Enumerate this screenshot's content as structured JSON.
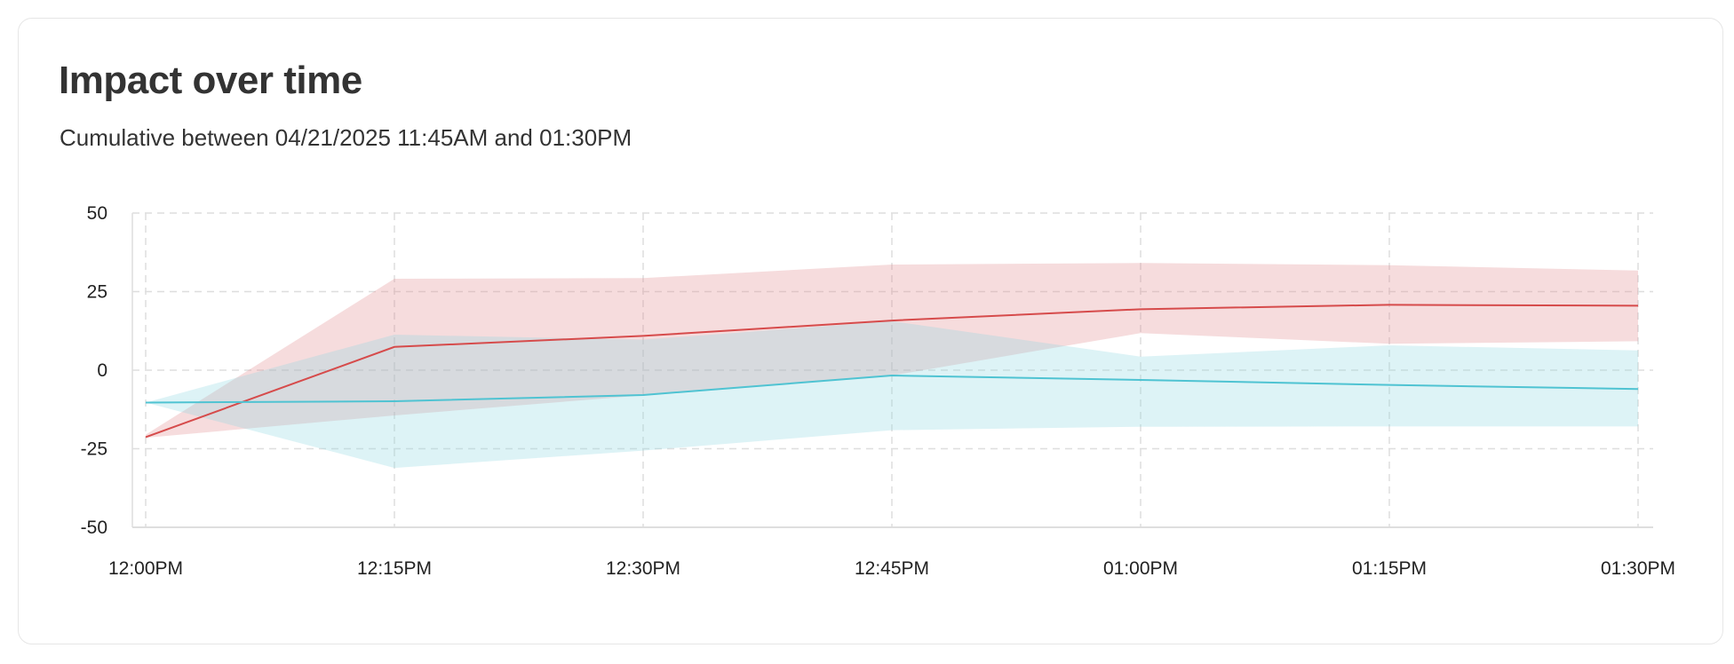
{
  "header": {
    "title": "Impact over time",
    "subtitle": "Cumulative between 04/21/2025 11:45AM and 01:30PM"
  },
  "chart_data": {
    "type": "line",
    "x": [
      "12:00PM",
      "12:15PM",
      "12:30PM",
      "12:45PM",
      "01:00PM",
      "01:15PM",
      "01:30PM"
    ],
    "ylim": [
      -50,
      50
    ],
    "yticks": [
      50,
      25,
      0,
      -25,
      -50
    ],
    "grid": true,
    "series": [
      {
        "color": "#d64b4b",
        "band_color": "#e08a90",
        "values": [
          -21.3,
          7.4,
          10.9,
          15.8,
          19.4,
          20.8,
          20.5
        ],
        "upper": [
          -20.5,
          29.1,
          29.3,
          33.6,
          34.1,
          33.4,
          31.7
        ],
        "lower": [
          -21.5,
          -14.4,
          -8.0,
          -1.7,
          11.8,
          8.4,
          9.2
        ]
      },
      {
        "color": "#4fc3d2",
        "band_color": "#8fd6e0",
        "values": [
          -10.3,
          -9.9,
          -7.9,
          -1.7,
          -3.1,
          -4.7,
          -6.0
        ],
        "upper": [
          -10.3,
          11.3,
          9.7,
          15.6,
          4.3,
          7.9,
          6.3
        ],
        "lower": [
          -10.3,
          -31.1,
          -25.6,
          -19.1,
          -18.0,
          -17.9,
          -17.9
        ]
      }
    ]
  }
}
